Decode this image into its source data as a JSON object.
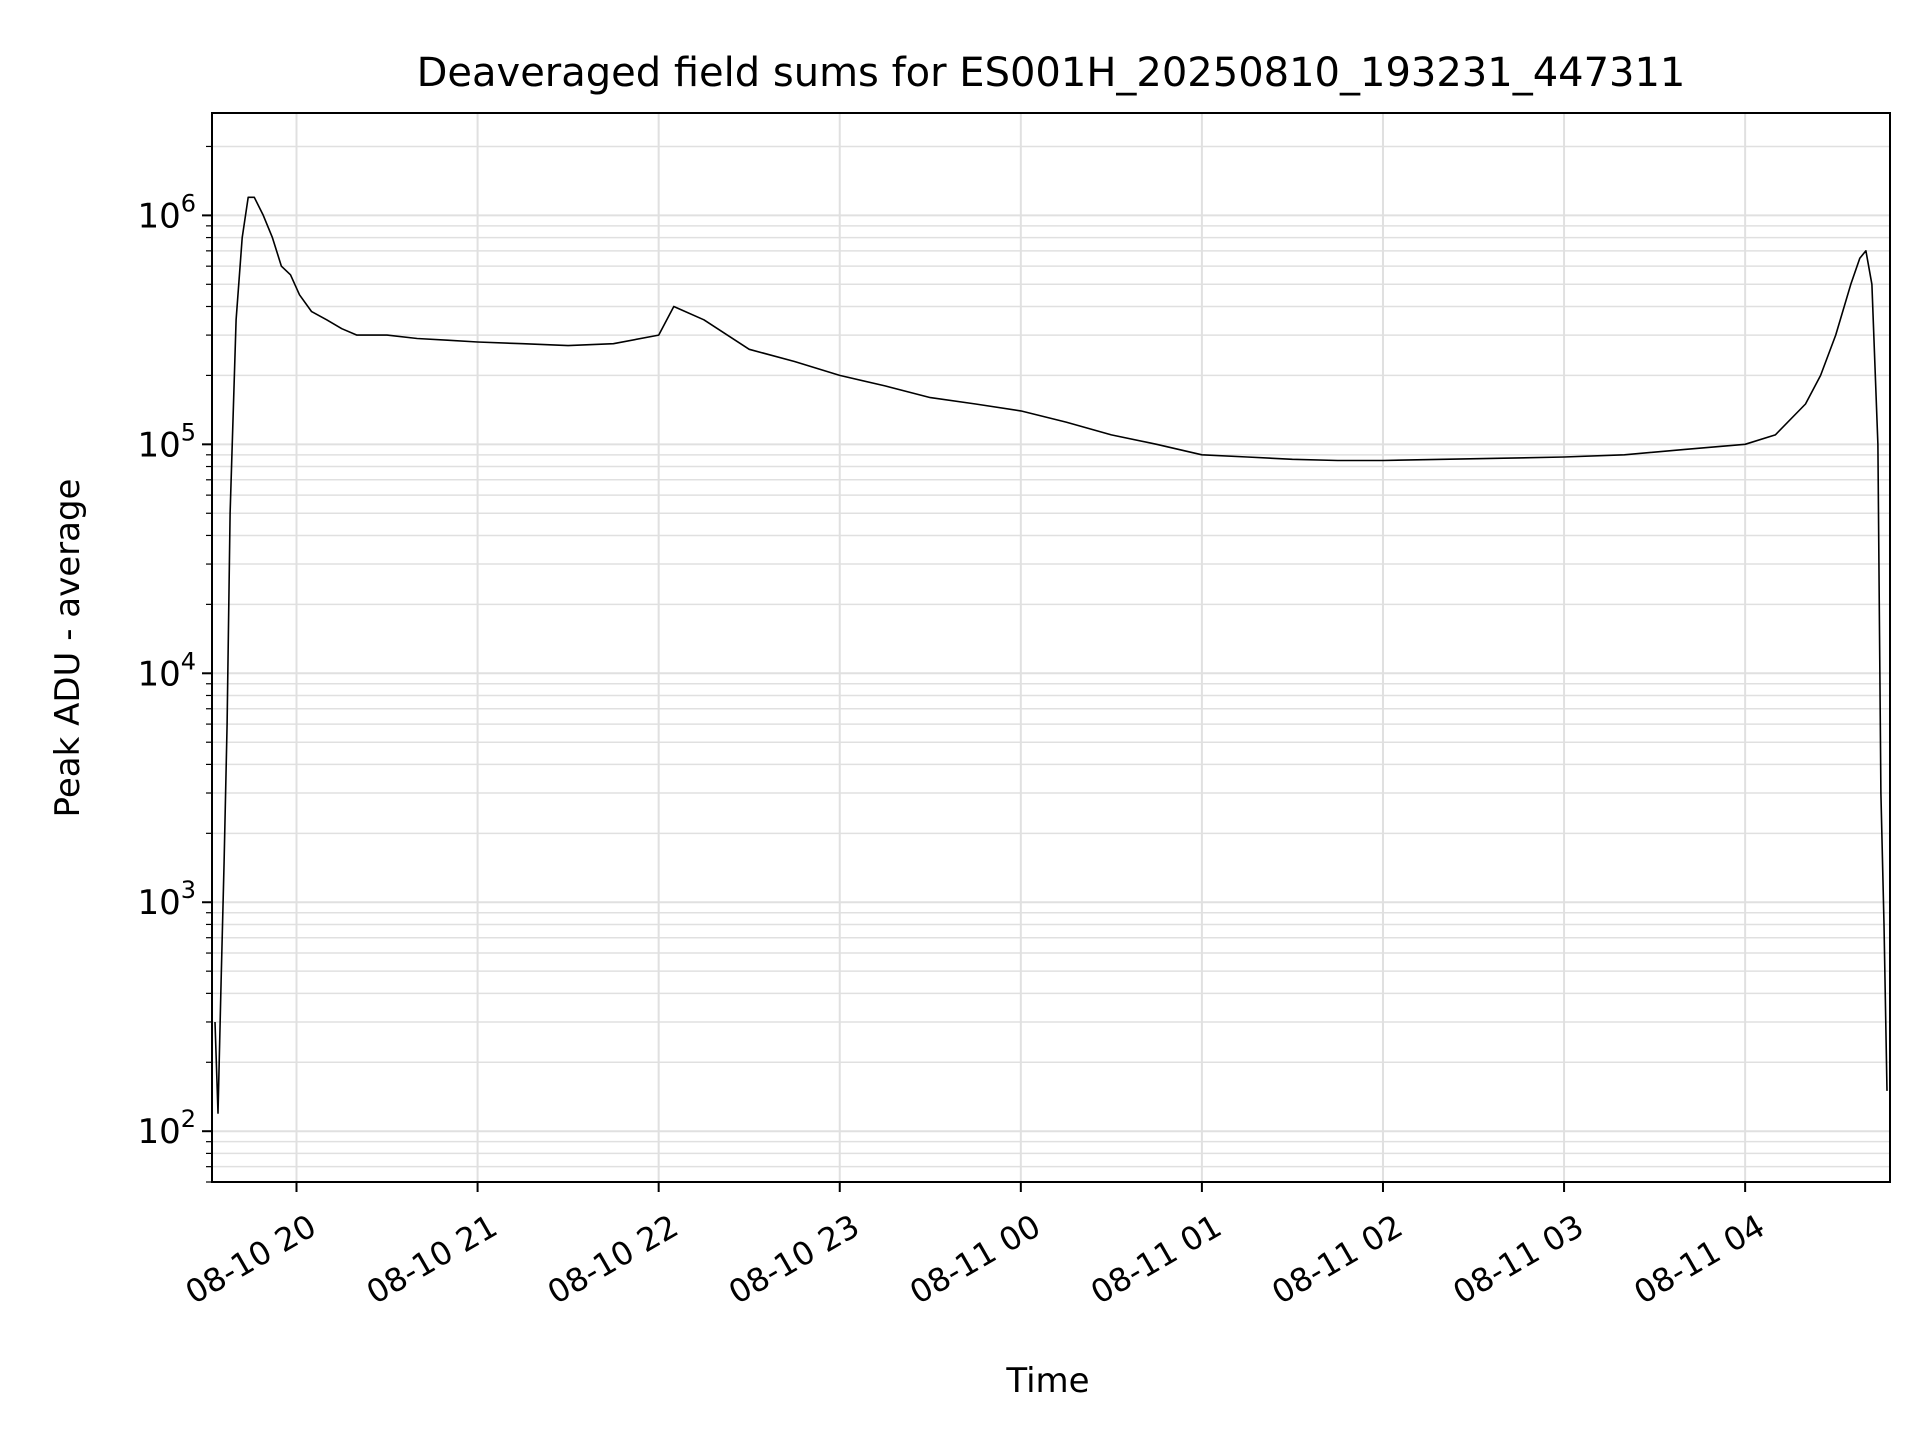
{
  "chart_data": {
    "type": "line",
    "title": "Deaveraged field sums for ES001H_20250810_193231_447311",
    "xlabel": "Time",
    "ylabel": "Peak ADU - average",
    "yscale": "log",
    "ylim": [
      60,
      2800000
    ],
    "xlim": [
      "2025-08-10 19:32",
      "2025-08-11 04:48"
    ],
    "grid": true,
    "line_color": "#000000",
    "grid_color": "#e0e0e0",
    "x_ticks": [
      {
        "t": "2025-08-10 20:00",
        "label": "08-10 20"
      },
      {
        "t": "2025-08-10 21:00",
        "label": "08-10 21"
      },
      {
        "t": "2025-08-10 22:00",
        "label": "08-10 22"
      },
      {
        "t": "2025-08-10 23:00",
        "label": "08-10 23"
      },
      {
        "t": "2025-08-11 00:00",
        "label": "08-11 00"
      },
      {
        "t": "2025-08-11 01:00",
        "label": "08-11 01"
      },
      {
        "t": "2025-08-11 02:00",
        "label": "08-11 02"
      },
      {
        "t": "2025-08-11 03:00",
        "label": "08-11 03"
      },
      {
        "t": "2025-08-11 04:00",
        "label": "08-11 04"
      }
    ],
    "y_ticks": [
      {
        "value": 100,
        "base": "10",
        "exp": "2"
      },
      {
        "value": 1000,
        "base": "10",
        "exp": "3"
      },
      {
        "value": 10000,
        "base": "10",
        "exp": "4"
      },
      {
        "value": 100000,
        "base": "10",
        "exp": "5"
      },
      {
        "value": 1000000,
        "base": "10",
        "exp": "6"
      }
    ],
    "series": [
      {
        "x": [
          "2025-08-10 19:33",
          "2025-08-10 19:34",
          "2025-08-10 19:35",
          "2025-08-10 19:36",
          "2025-08-10 19:37",
          "2025-08-10 19:38",
          "2025-08-10 19:40",
          "2025-08-10 19:42",
          "2025-08-10 19:44",
          "2025-08-10 19:46",
          "2025-08-10 19:49",
          "2025-08-10 19:52",
          "2025-08-10 19:55",
          "2025-08-10 19:58",
          "2025-08-10 20:01",
          "2025-08-10 20:05",
          "2025-08-10 20:10",
          "2025-08-10 20:15",
          "2025-08-10 20:20",
          "2025-08-10 20:30",
          "2025-08-10 20:40",
          "2025-08-10 20:50",
          "2025-08-10 21:00",
          "2025-08-10 21:15",
          "2025-08-10 21:30",
          "2025-08-10 21:45",
          "2025-08-10 22:00",
          "2025-08-10 22:05",
          "2025-08-10 22:15",
          "2025-08-10 22:30",
          "2025-08-10 22:45",
          "2025-08-10 23:00",
          "2025-08-10 23:15",
          "2025-08-10 23:30",
          "2025-08-10 23:45",
          "2025-08-11 00:00",
          "2025-08-11 00:15",
          "2025-08-11 00:30",
          "2025-08-11 00:45",
          "2025-08-11 01:00",
          "2025-08-11 01:15",
          "2025-08-11 01:30",
          "2025-08-11 01:45",
          "2025-08-11 02:00",
          "2025-08-11 02:20",
          "2025-08-11 02:40",
          "2025-08-11 03:00",
          "2025-08-11 03:20",
          "2025-08-11 03:40",
          "2025-08-11 04:00",
          "2025-08-11 04:10",
          "2025-08-11 04:20",
          "2025-08-11 04:25",
          "2025-08-11 04:30",
          "2025-08-11 04:35",
          "2025-08-11 04:38",
          "2025-08-11 04:40",
          "2025-08-11 04:42",
          "2025-08-11 04:44",
          "2025-08-11 04:45",
          "2025-08-11 04:46",
          "2025-08-11 04:47"
        ],
        "y": [
          300,
          120,
          450,
          1500,
          6000,
          50000,
          350000,
          800000,
          1200000,
          1200000,
          1000000,
          800000,
          600000,
          550000,
          450000,
          380000,
          350000,
          320000,
          300000,
          300000,
          290000,
          285000,
          280000,
          275000,
          270000,
          275000,
          300000,
          400000,
          350000,
          260000,
          230000,
          200000,
          180000,
          160000,
          150000,
          140000,
          125000,
          110000,
          100000,
          90000,
          88000,
          86000,
          85000,
          85000,
          86000,
          87000,
          88000,
          90000,
          95000,
          100000,
          110000,
          150000,
          200000,
          300000,
          500000,
          650000,
          700000,
          500000,
          100000,
          3000,
          800,
          150
        ]
      }
    ]
  }
}
